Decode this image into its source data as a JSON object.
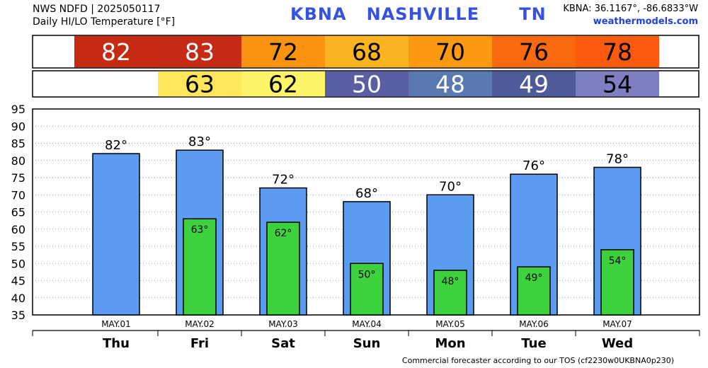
{
  "header": {
    "line1": "NWS NDFD | 2025050117",
    "line2": "Daily HI/LO Temperature [°F]",
    "title": "KBNA   NASHVILLE      TN",
    "coords": "KBNA: 36.1167°, -86.6833°W",
    "site": "weathermodels.com"
  },
  "footer": "Commercial forecaster according to our TOS (cf2230w0UKBNA0p230)",
  "chart_data": {
    "type": "bar",
    "categories": [
      "Thu",
      "Fri",
      "Sat",
      "Sun",
      "Mon",
      "Tue",
      "Wed"
    ],
    "dates": [
      "MAY.01",
      "MAY.02",
      "MAY.03",
      "MAY.04",
      "MAY.05",
      "MAY.06",
      "MAY.07"
    ],
    "series": [
      {
        "values": [
          82,
          83,
          72,
          68,
          70,
          76,
          78
        ],
        "color": "#5b9bf0"
      },
      {
        "values": [
          null,
          63,
          62,
          50,
          48,
          49,
          54
        ],
        "color": "#3ed13e"
      }
    ],
    "high_strip_colors": [
      "#c62a10",
      "#c42a14",
      "#fb9210",
      "#fbb41f",
      "#fb9a10",
      "#f96a10",
      "#fb5a0f"
    ],
    "low_strip_colors": [
      null,
      "#fde65a",
      "#fdf46a",
      "#5a5ea2",
      "#5a78b2",
      "#4f5a9a",
      "#7e7ec2"
    ],
    "degree_suffix": "°",
    "ylim": [
      35,
      95
    ],
    "yticks": [
      35,
      40,
      45,
      50,
      55,
      60,
      65,
      70,
      75,
      80,
      85,
      90,
      95
    ],
    "grid": true
  }
}
